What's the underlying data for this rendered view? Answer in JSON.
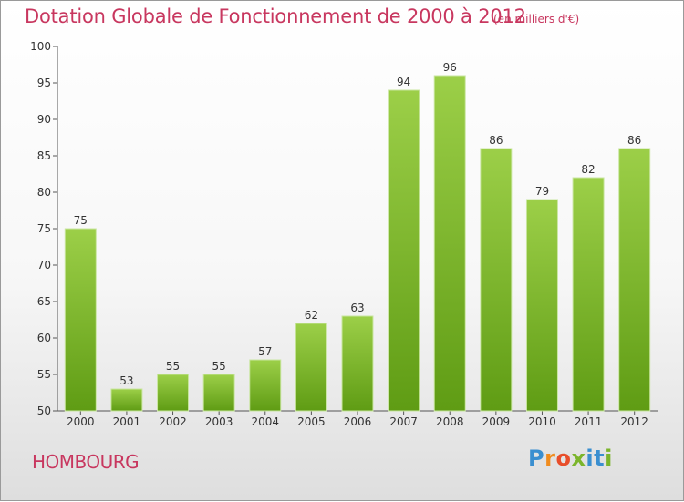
{
  "chart_data": {
    "type": "bar",
    "title": "Dotation Globale de Fonctionnement de 2000 à 2012",
    "unit_note": "(en milliers d'€)",
    "categories": [
      "2000",
      "2001",
      "2002",
      "2003",
      "2004",
      "2005",
      "2006",
      "2007",
      "2008",
      "2009",
      "2010",
      "2011",
      "2012"
    ],
    "values": [
      75,
      53,
      55,
      55,
      57,
      62,
      63,
      94,
      96,
      86,
      79,
      82,
      86
    ],
    "ylim": [
      50,
      100
    ],
    "yticks": [
      50,
      55,
      60,
      65,
      70,
      75,
      80,
      85,
      90,
      95,
      100
    ],
    "grid": false,
    "bar_color": "#7dba2f",
    "data_labels": true
  },
  "footer": {
    "commune": "HOMBOURG",
    "logo_text": "Proxiti"
  },
  "colors": {
    "title": "#c8375f",
    "bar_light": "#9ccf48",
    "bar_dark": "#5f9c14",
    "logo": [
      "#3a8fd0",
      "#f08c1e",
      "#e84e2a",
      "#7bb52b",
      "#3a8fd0",
      "#3a8fd0",
      "#7bb52b"
    ]
  }
}
